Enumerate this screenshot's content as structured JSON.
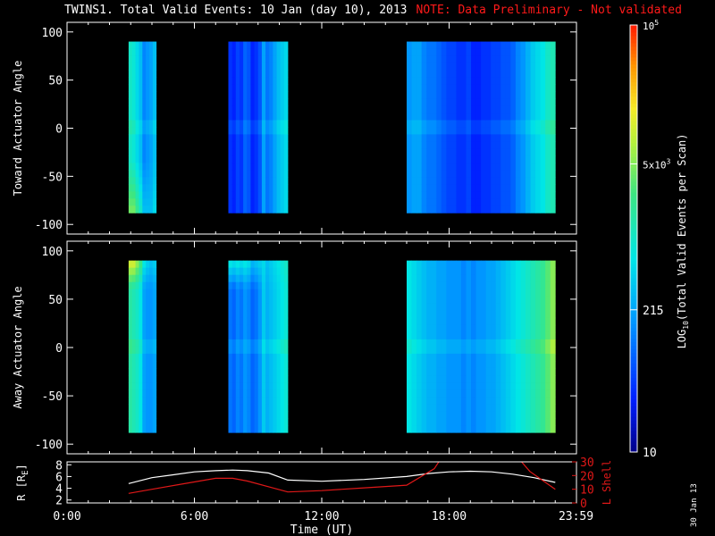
{
  "header": {
    "title": "TWINS1. Total Valid Events: 10 Jan (day  10), 2013",
    "note": "NOTE: Data Preliminary - Not validated"
  },
  "footer": {
    "date_stamp": "30 Jan 13"
  },
  "colors": {
    "background": "#000000",
    "axis": "#ffffff",
    "note": "#ff1a1a",
    "r_line": "#ffffff",
    "lshell_line": "#e01818"
  },
  "chart_data": [
    {
      "type": "heatmap",
      "name": "toward",
      "ylabel": "Toward Actuator Angle",
      "ylim": [
        -110,
        110
      ],
      "yticks": [
        100,
        50,
        0,
        -50,
        -100
      ],
      "xlim": [
        0,
        24
      ],
      "data_range_y": [
        -88,
        90
      ],
      "blocks": [
        {
          "x": [
            2.9,
            4.2
          ],
          "columns": [
            3.0,
            2.9,
            2.7,
            2.5,
            2.1,
            2.2,
            2.3,
            2.5
          ],
          "bottom_boost": [
            0.6,
            0.7,
            0.6,
            0.5,
            0.4,
            0.3,
            0.2,
            0.2
          ]
        },
        {
          "x": [
            7.6,
            10.4
          ],
          "columns": [
            1.6,
            1.5,
            1.7,
            1.6,
            1.9,
            1.8,
            1.5,
            1.6,
            1.8,
            2.3,
            2.0,
            2.1,
            2.3,
            2.5,
            2.6,
            2.7
          ]
        },
        {
          "x": [
            16.0,
            23.0
          ],
          "columns": [
            2.2,
            2.3,
            2.3,
            2.1,
            2.0,
            2.0,
            1.9,
            1.8,
            1.7,
            1.7,
            1.6,
            1.6,
            1.7,
            1.5,
            1.5,
            1.6,
            1.6,
            1.7,
            1.7,
            1.8,
            1.8,
            1.9,
            2.1,
            2.2,
            2.4,
            2.6,
            2.7,
            2.8,
            3.0,
            3.1
          ]
        }
      ]
    },
    {
      "type": "heatmap",
      "name": "away",
      "ylabel": "Away Actuator Angle",
      "ylim": [
        -110,
        110
      ],
      "yticks": [
        100,
        50,
        0,
        -50,
        -100
      ],
      "xlim": [
        0,
        24
      ],
      "data_range_y": [
        -88,
        90
      ],
      "blocks": [
        {
          "x": [
            2.9,
            4.2
          ],
          "columns": [
            3.2,
            3.1,
            3.0,
            2.8,
            2.3,
            2.2,
            2.2,
            2.3
          ],
          "top_boost": [
            0.8,
            0.9,
            0.7,
            0.6,
            0.5,
            0.4,
            0.3,
            0.3
          ]
        },
        {
          "x": [
            7.6,
            10.4
          ],
          "columns": [
            2.0,
            1.9,
            2.1,
            2.0,
            2.2,
            2.1,
            1.9,
            2.0,
            2.2,
            2.6,
            2.4,
            2.5,
            2.6,
            2.7,
            2.8,
            2.9
          ],
          "top_boost": [
            0.8,
            0.8,
            0.7,
            0.7,
            0.6,
            0.6,
            0.5,
            0.5,
            0.4,
            0.1,
            0.1,
            0.1,
            0.1,
            0.1,
            0.1,
            0.1
          ]
        },
        {
          "x": [
            16.0,
            23.0
          ],
          "columns": [
            2.8,
            2.7,
            2.6,
            2.5,
            2.4,
            2.4,
            2.3,
            2.3,
            2.2,
            2.2,
            2.2,
            2.1,
            2.2,
            2.1,
            2.2,
            2.2,
            2.3,
            2.3,
            2.4,
            2.5,
            2.6,
            2.7,
            2.8,
            2.9,
            3.0,
            3.1,
            3.2,
            3.3,
            3.5,
            3.7
          ]
        }
      ]
    },
    {
      "type": "line",
      "name": "orbit",
      "ylabel_left": "R [R",
      "ylabel_left_sub": "E",
      "ylabel_left_end": "]",
      "ylabel_right": "L Shell",
      "ylim_left": [
        1.5,
        8.5
      ],
      "yticks_left": [
        8,
        6,
        4,
        2
      ],
      "ylim_right": [
        0,
        30
      ],
      "yticks_right": [
        30,
        20,
        10,
        0
      ],
      "xlabel": "Time (UT)",
      "xticks": [
        "0:00",
        "6:00",
        "12:00",
        "18:00",
        "23:59"
      ],
      "xtick_values": [
        0,
        6,
        12,
        18,
        23.98
      ],
      "xlim": [
        0,
        24
      ],
      "series": [
        {
          "axis": "left",
          "x": [
            2.9,
            4.0,
            5.0,
            6.0,
            7.0,
            7.8,
            8.5,
            9.5,
            10.4,
            12.0,
            14.0,
            16.0,
            17.0,
            18.0,
            19.0,
            20.0,
            21.0,
            22.0,
            23.0
          ],
          "y": [
            4.8,
            5.8,
            6.3,
            6.8,
            7.0,
            7.1,
            7.0,
            6.6,
            5.4,
            5.2,
            5.5,
            6.0,
            6.5,
            6.8,
            6.9,
            6.8,
            6.4,
            5.8,
            5.0
          ]
        },
        {
          "axis": "right",
          "x": [
            2.9,
            4.0,
            5.5,
            7.0,
            7.8,
            8.5,
            10.4,
            12.0,
            14.0,
            16.0,
            17.3,
            17.6
          ],
          "y": [
            7,
            10,
            14,
            18,
            18,
            16,
            8,
            9,
            11,
            13,
            25,
            32
          ]
        },
        {
          "axis": "right",
          "x": [
            21.3,
            21.8,
            23.0
          ],
          "y": [
            32,
            23,
            10
          ]
        }
      ]
    },
    {
      "type": "colorbar",
      "label": "LOG",
      "label_sub": "10",
      "label_rest": "(Total Valid Events per Scan)",
      "scale": "log",
      "range": [
        10,
        100000
      ],
      "ticks": [
        {
          "value": 100000,
          "label": "10",
          "sup": "5"
        },
        {
          "value": 5000,
          "label": "5x10",
          "sup": "3"
        },
        {
          "value": 215,
          "label": "215",
          "sup": ""
        },
        {
          "value": 10,
          "label": "10",
          "sup": ""
        }
      ]
    }
  ]
}
